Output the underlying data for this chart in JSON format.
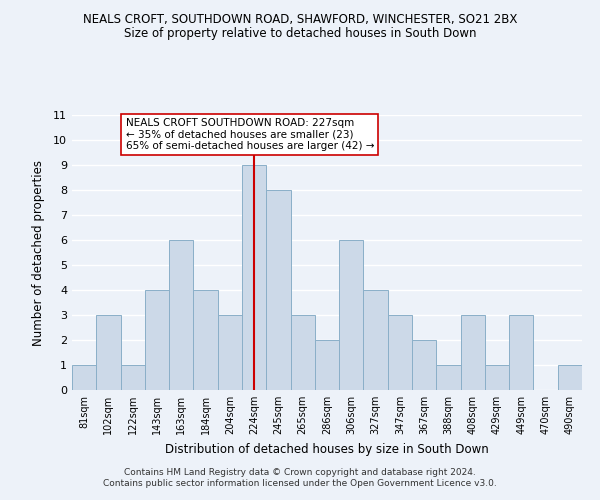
{
  "title": "NEALS CROFT, SOUTHDOWN ROAD, SHAWFORD, WINCHESTER, SO21 2BX",
  "subtitle": "Size of property relative to detached houses in South Down",
  "xlabel": "Distribution of detached houses by size in South Down",
  "ylabel": "Number of detached properties",
  "bin_labels": [
    "81sqm",
    "102sqm",
    "122sqm",
    "143sqm",
    "163sqm",
    "184sqm",
    "204sqm",
    "224sqm",
    "245sqm",
    "265sqm",
    "286sqm",
    "306sqm",
    "327sqm",
    "347sqm",
    "367sqm",
    "388sqm",
    "408sqm",
    "429sqm",
    "449sqm",
    "470sqm",
    "490sqm"
  ],
  "bar_heights": [
    1,
    3,
    1,
    4,
    6,
    4,
    3,
    9,
    8,
    3,
    2,
    6,
    4,
    3,
    2,
    1,
    3,
    1,
    3,
    0,
    1
  ],
  "bar_color": "#ccd9e8",
  "bar_edge_color": "#8aafc8",
  "vline_x_index": 7,
  "vline_color": "#cc0000",
  "ylim": [
    0,
    11
  ],
  "yticks": [
    0,
    1,
    2,
    3,
    4,
    5,
    6,
    7,
    8,
    9,
    10,
    11
  ],
  "annotation_title": "NEALS CROFT SOUTHDOWN ROAD: 227sqm",
  "annotation_line1": "← 35% of detached houses are smaller (23)",
  "annotation_line2": "65% of semi-detached houses are larger (42) →",
  "annotation_box_color": "#ffffff",
  "annotation_box_edge": "#cc0000",
  "footer1": "Contains HM Land Registry data © Crown copyright and database right 2024.",
  "footer2": "Contains public sector information licensed under the Open Government Licence v3.0.",
  "bg_color": "#edf2f9",
  "grid_color": "#ffffff"
}
